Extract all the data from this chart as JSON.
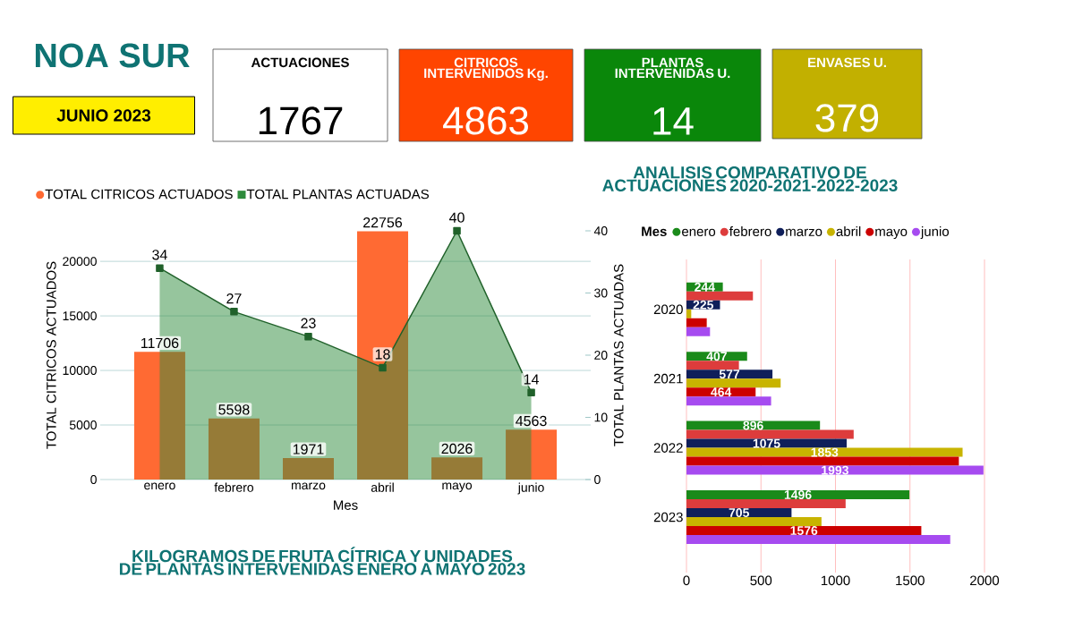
{
  "chart_data": [
    {
      "type": "other",
      "title": "NOA SUR",
      "subtitle": "JUNIO 2023",
      "colors": [
        "#ffee00",
        "#ffffff",
        "#ff4500",
        "#0a870a",
        "#c2b000"
      ],
      "annotations": [
        "ACTUACIONES",
        "1767",
        "CITRICOS INTERVENIDOS Kg.",
        "4863",
        "PLANTAS INTERVENIDAS U.",
        "14",
        "ENVASES U.",
        "379"
      ]
    },
    {
      "type": "bar",
      "title": "KILOGRAMOS DE FRUTA CÍTRICA Y UNIDADES DE PLANTAS INTERVENIDAS  ENERO A MAYO 2023",
      "xlabel": "Mes",
      "ylabel": "TOTAL CITRICOS ACTUADOS",
      "y2label": "TOTAL PLANTAS ACTUADAS",
      "categories": [
        "enero",
        "febrero",
        "marzo",
        "abril",
        "mayo",
        "junio"
      ],
      "series": [
        {
          "name": "TOTAL CITRICOS ACTUADOS",
          "type": "bar",
          "color": "#ff6a33",
          "values": [
            11706,
            5598,
            1971,
            22756,
            2026,
            4563
          ]
        },
        {
          "name": "TOTAL PLANTAS ACTUADAS",
          "type": "area",
          "axis": "y2",
          "color": "#2e8b3c",
          "values": [
            34,
            27,
            23,
            18,
            40,
            14
          ]
        }
      ],
      "ylim": [
        0,
        22800
      ],
      "yticks": [
        0,
        5000,
        10000,
        15000,
        20000
      ],
      "y2lim": [
        0,
        40
      ],
      "y2ticks": [
        0,
        10,
        20,
        30,
        40
      ],
      "grid": "y",
      "legend": "top left",
      "marker": "square",
      "data_labels": true
    },
    {
      "type": "bar",
      "orientation": "horizontal",
      "title": "ANALISIS COMPARATIVO DE ACTUACIONES 2020-2021-2022-2023",
      "legend_title": "Mes",
      "categories": [
        "2020",
        "2021",
        "2022",
        "2023"
      ],
      "series": [
        {
          "name": "enero",
          "color": "#1a8a1a",
          "values": [
            244,
            407,
            896,
            1496
          ],
          "value_labels": [
            "244",
            "407",
            "896",
            "1496"
          ]
        },
        {
          "name": "febrero",
          "color": "#dd3c3c",
          "values": [
            446,
            352,
            1122,
            1068
          ],
          "value_labels": [
            null,
            null,
            null,
            null
          ]
        },
        {
          "name": "marzo",
          "color": "#0f1f5a",
          "values": [
            225,
            577,
            1075,
            705
          ],
          "value_labels": [
            "225",
            "577",
            "1075",
            "705"
          ]
        },
        {
          "name": "abril",
          "color": "#c8b400",
          "values": [
            32,
            632,
            1853,
            906
          ],
          "value_labels": [
            null,
            null,
            "1853",
            null
          ]
        },
        {
          "name": "mayo",
          "color": "#cc0000",
          "values": [
            136,
            464,
            1828,
            1576
          ],
          "value_labels": [
            null,
            "464",
            null,
            "1576"
          ]
        },
        {
          "name": "junio",
          "color": "#a64bf0",
          "values": [
            158,
            568,
            1993,
            1770
          ],
          "value_labels": [
            null,
            null,
            "1993",
            null
          ]
        }
      ],
      "xlim": [
        0,
        2000
      ],
      "xticks": [
        0,
        500,
        1000,
        1500,
        2000
      ],
      "grid": "x",
      "legend": "top"
    }
  ]
}
